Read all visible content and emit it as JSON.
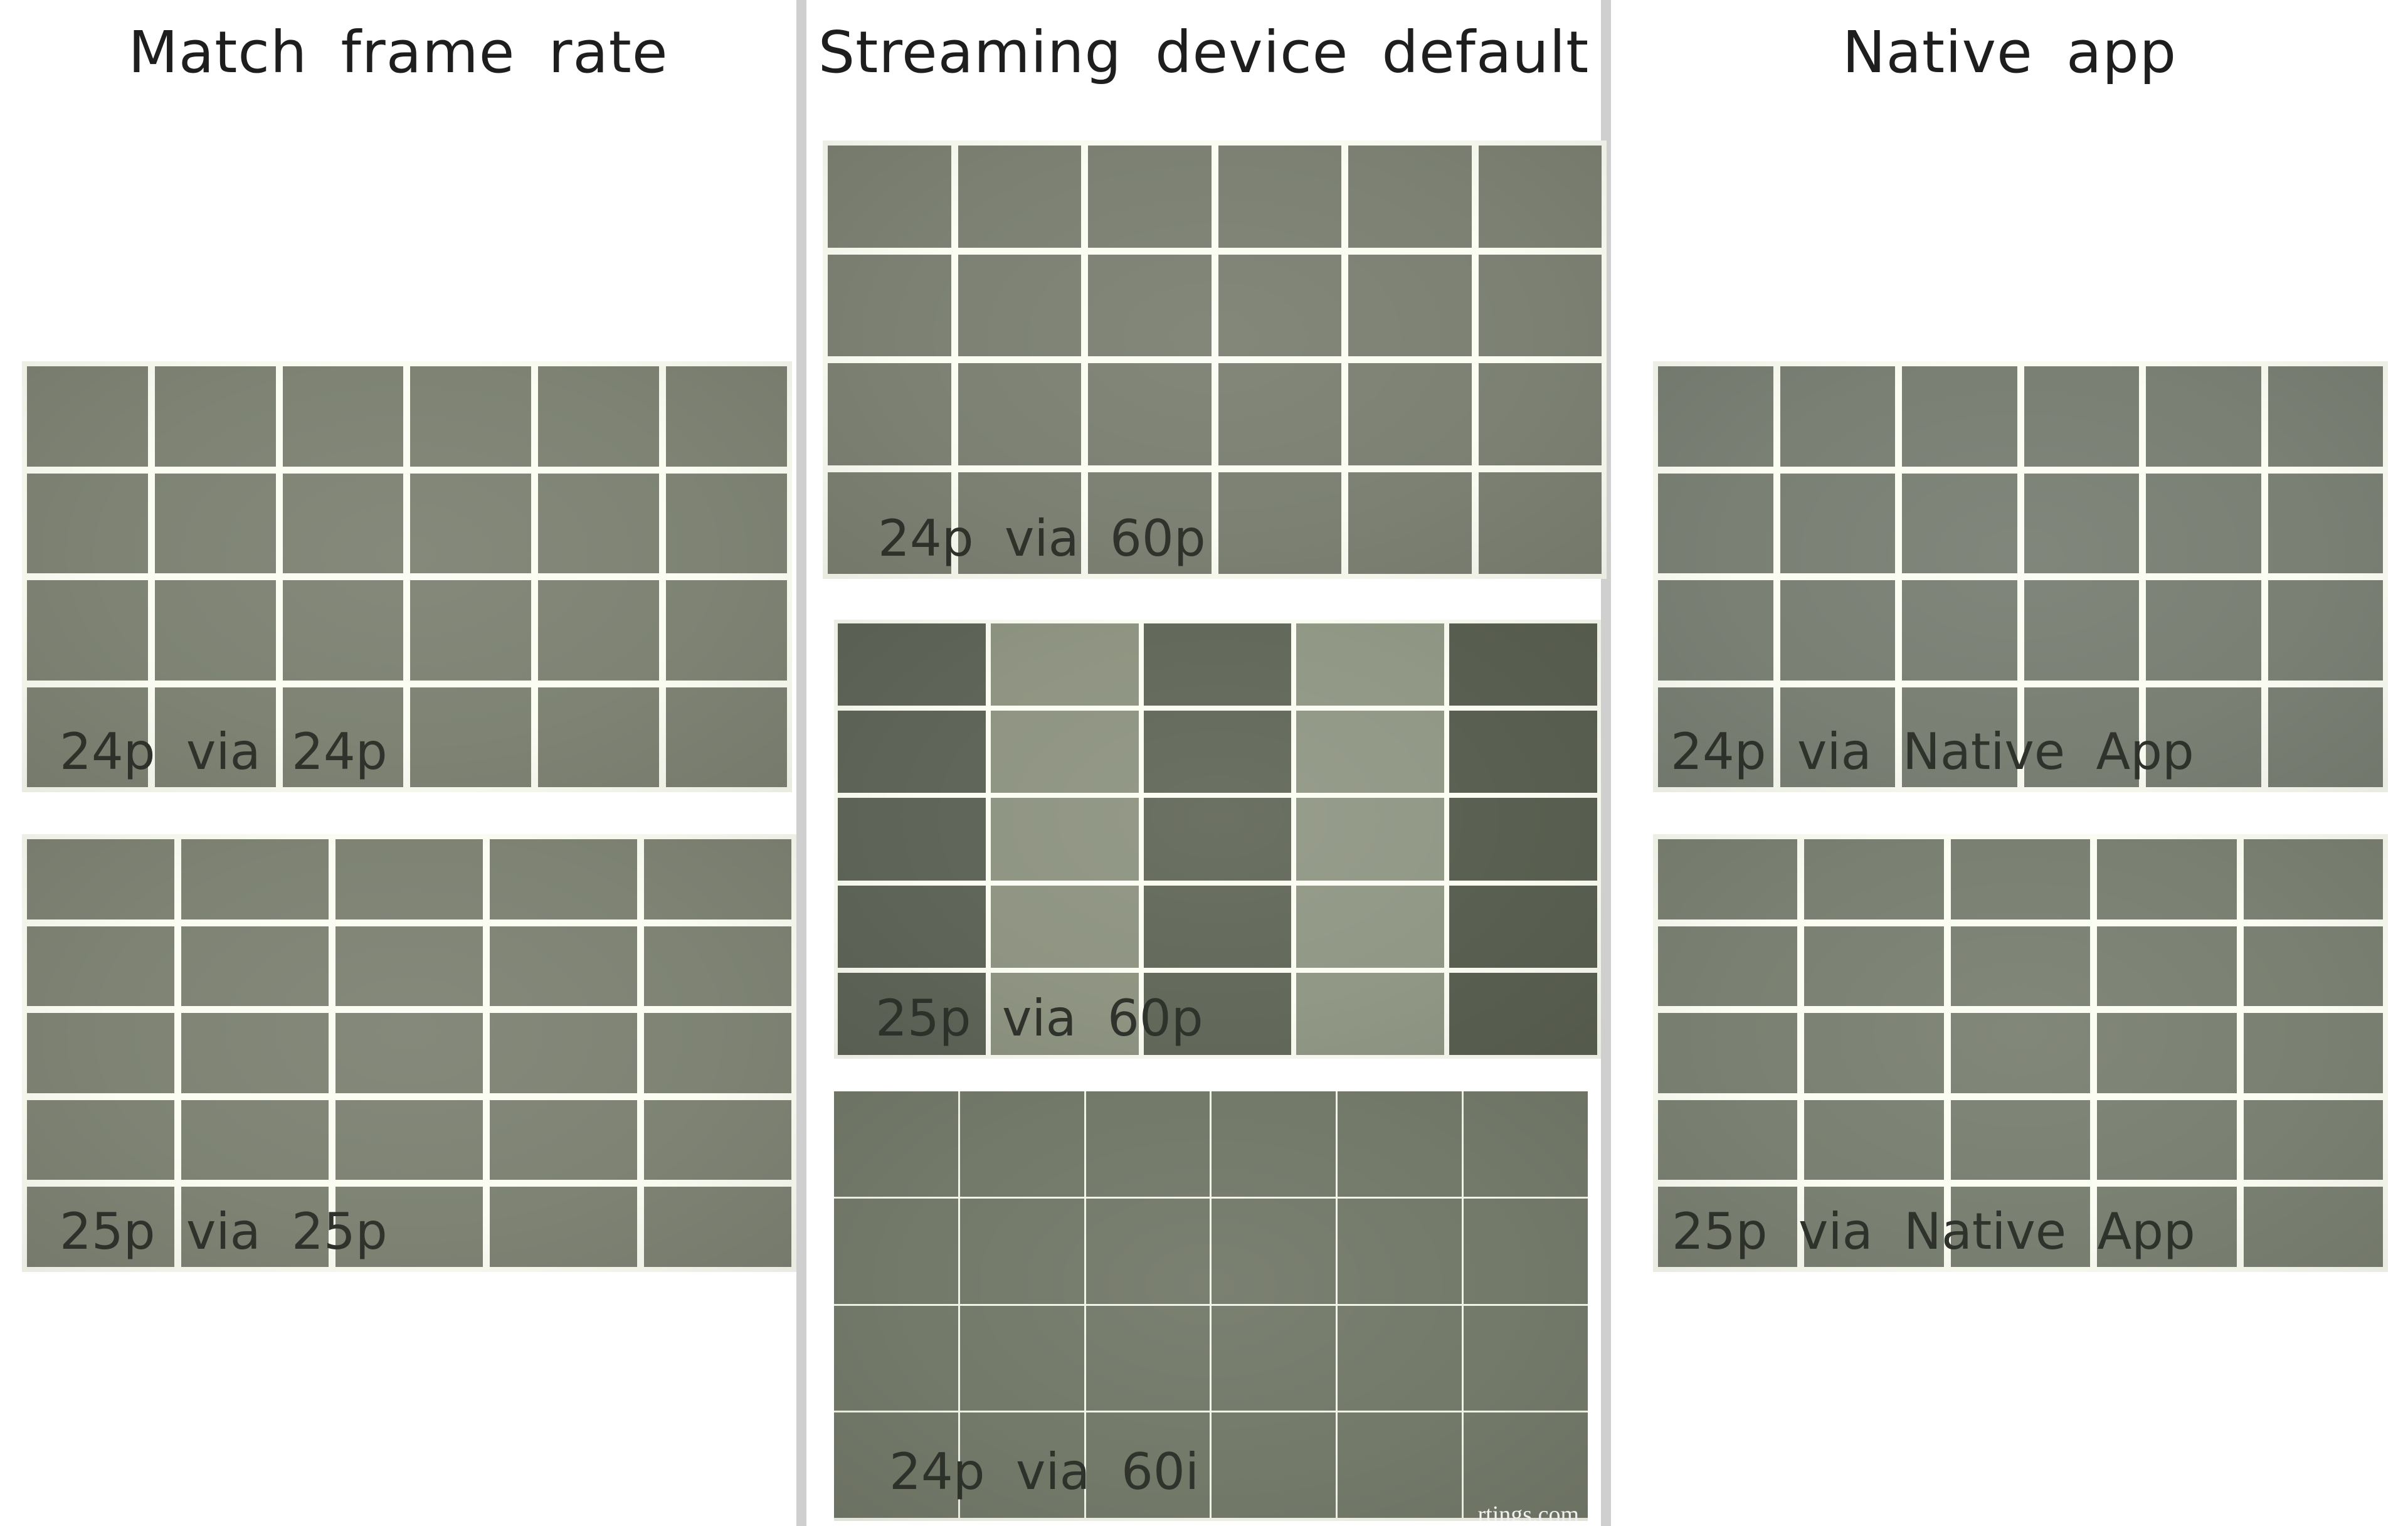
{
  "page": {
    "background_color": "#ffffff",
    "divider_color": "#cfcfcf",
    "header_color": "#1e1e1e",
    "pattern_label_color": "#30332c"
  },
  "column_headers": [
    {
      "title": "Match frame rate"
    },
    {
      "title": "Streaming device default"
    },
    {
      "title": "Native app"
    }
  ],
  "panels": [
    {
      "label": "24p via 24p",
      "column": "Match frame rate",
      "grid_cols": 6,
      "grid_rows": 4,
      "cell_color": "#7e8374",
      "gutter_color": "#fbfdf3",
      "line_weight": "thick"
    },
    {
      "label": "25p via 25p",
      "column": "Match frame rate",
      "grid_cols": 5,
      "grid_rows": 5,
      "cell_color": "#7e8374",
      "gutter_color": "#fbfdf3",
      "line_weight": "thick"
    },
    {
      "label": "24p via 60p",
      "column": "Streaming device default",
      "grid_cols": 6,
      "grid_rows": 4,
      "cell_color": "#7c8173",
      "gutter_color": "#fbfdf3",
      "line_weight": "thick"
    },
    {
      "label": "25p via 60p",
      "column": "Streaming device default",
      "grid_cols": 5,
      "grid_rows": 5,
      "column_colors": [
        "#5f6558",
        "#8f9582",
        "#646a5b",
        "#929886",
        "#5a6051"
      ],
      "gutter_color": "#fbfdf3",
      "line_weight": "medium",
      "visible_effect": "alternating dark/light columns (judder cadence)"
    },
    {
      "label": "24p via 60i",
      "column": "Streaming device default",
      "grid_cols": 6,
      "grid_rows": 4,
      "cell_color": "#747a6a",
      "gutter_color": "#f2f4ea",
      "line_weight": "thin",
      "watermark": "rtings.com"
    },
    {
      "label": "24p via Native App",
      "column": "Native app",
      "grid_cols": 6,
      "grid_rows": 4,
      "cell_color": "#7a8074",
      "gutter_color": "#fbfdf3",
      "line_weight": "thick"
    },
    {
      "label": "25p via Native App",
      "column": "Native app",
      "grid_cols": 5,
      "grid_rows": 5,
      "cell_color": "#7b8172",
      "gutter_color": "#fbfdf3",
      "line_weight": "thick"
    }
  ]
}
